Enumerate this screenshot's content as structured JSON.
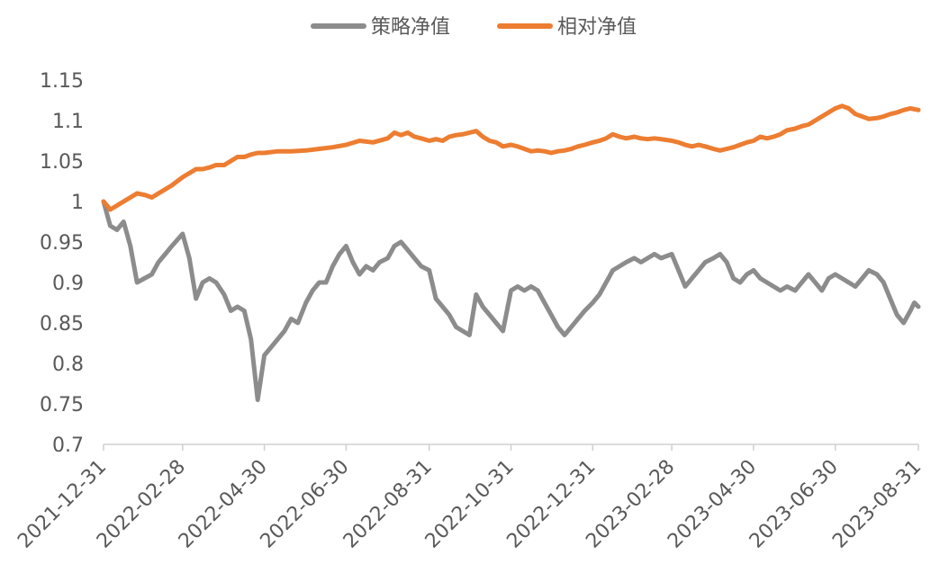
{
  "chart_data": {
    "type": "line",
    "title": "",
    "xlabel": "",
    "ylabel": "",
    "ylim": [
      0.7,
      1.15
    ],
    "y_ticks": [
      "1.15",
      "1.1",
      "1.05",
      "1",
      "0.95",
      "0.9",
      "0.85",
      "0.8",
      "0.75",
      "0.7"
    ],
    "x_ticks": [
      "2021-12-31",
      "2022-02-28",
      "2022-04-30",
      "2022-06-30",
      "2022-08-31",
      "2022-10-31",
      "2022-12-31",
      "2023-02-28",
      "2023-04-30",
      "2023-06-30",
      "2023-08-31"
    ],
    "grid": false,
    "legend_position": "top-center",
    "series": [
      {
        "name": "策略净值",
        "color": "#8c8c8c",
        "points": [
          [
            "2021-12-31",
            1.0
          ],
          [
            "2022-01-05",
            0.97
          ],
          [
            "2022-01-10",
            0.965
          ],
          [
            "2022-01-15",
            0.975
          ],
          [
            "2022-01-20",
            0.945
          ],
          [
            "2022-01-25",
            0.9
          ],
          [
            "2022-02-05",
            0.91
          ],
          [
            "2022-02-10",
            0.925
          ],
          [
            "2022-02-15",
            0.935
          ],
          [
            "2022-02-20",
            0.945
          ],
          [
            "2022-02-28",
            0.96
          ],
          [
            "2022-03-05",
            0.93
          ],
          [
            "2022-03-10",
            0.88
          ],
          [
            "2022-03-15",
            0.9
          ],
          [
            "2022-03-20",
            0.905
          ],
          [
            "2022-03-25",
            0.9
          ],
          [
            "2022-03-31",
            0.885
          ],
          [
            "2022-04-05",
            0.865
          ],
          [
            "2022-04-10",
            0.87
          ],
          [
            "2022-04-15",
            0.865
          ],
          [
            "2022-04-20",
            0.83
          ],
          [
            "2022-04-25",
            0.755
          ],
          [
            "2022-04-30",
            0.81
          ],
          [
            "2022-05-05",
            0.82
          ],
          [
            "2022-05-10",
            0.83
          ],
          [
            "2022-05-15",
            0.84
          ],
          [
            "2022-05-20",
            0.855
          ],
          [
            "2022-05-25",
            0.85
          ],
          [
            "2022-05-31",
            0.875
          ],
          [
            "2022-06-05",
            0.89
          ],
          [
            "2022-06-10",
            0.9
          ],
          [
            "2022-06-15",
            0.9
          ],
          [
            "2022-06-20",
            0.92
          ],
          [
            "2022-06-25",
            0.935
          ],
          [
            "2022-06-30",
            0.945
          ],
          [
            "2022-07-05",
            0.925
          ],
          [
            "2022-07-10",
            0.91
          ],
          [
            "2022-07-15",
            0.92
          ],
          [
            "2022-07-20",
            0.915
          ],
          [
            "2022-07-25",
            0.925
          ],
          [
            "2022-07-31",
            0.93
          ],
          [
            "2022-08-05",
            0.945
          ],
          [
            "2022-08-10",
            0.95
          ],
          [
            "2022-08-15",
            0.94
          ],
          [
            "2022-08-20",
            0.93
          ],
          [
            "2022-08-25",
            0.92
          ],
          [
            "2022-08-31",
            0.915
          ],
          [
            "2022-09-05",
            0.88
          ],
          [
            "2022-09-10",
            0.87
          ],
          [
            "2022-09-15",
            0.86
          ],
          [
            "2022-09-20",
            0.845
          ],
          [
            "2022-09-25",
            0.84
          ],
          [
            "2022-09-30",
            0.835
          ],
          [
            "2022-10-05",
            0.885
          ],
          [
            "2022-10-10",
            0.87
          ],
          [
            "2022-10-15",
            0.86
          ],
          [
            "2022-10-20",
            0.85
          ],
          [
            "2022-10-25",
            0.84
          ],
          [
            "2022-10-31",
            0.89
          ],
          [
            "2022-11-05",
            0.895
          ],
          [
            "2022-11-10",
            0.89
          ],
          [
            "2022-11-15",
            0.895
          ],
          [
            "2022-11-20",
            0.89
          ],
          [
            "2022-11-25",
            0.875
          ],
          [
            "2022-11-30",
            0.86
          ],
          [
            "2022-12-05",
            0.845
          ],
          [
            "2022-12-10",
            0.835
          ],
          [
            "2022-12-15",
            0.845
          ],
          [
            "2022-12-20",
            0.855
          ],
          [
            "2022-12-25",
            0.865
          ],
          [
            "2022-12-31",
            0.875
          ],
          [
            "2023-01-05",
            0.885
          ],
          [
            "2023-01-10",
            0.9
          ],
          [
            "2023-01-15",
            0.915
          ],
          [
            "2023-01-20",
            0.92
          ],
          [
            "2023-01-25",
            0.925
          ],
          [
            "2023-01-31",
            0.93
          ],
          [
            "2023-02-05",
            0.925
          ],
          [
            "2023-02-10",
            0.93
          ],
          [
            "2023-02-15",
            0.935
          ],
          [
            "2023-02-20",
            0.93
          ],
          [
            "2023-02-28",
            0.935
          ],
          [
            "2023-03-05",
            0.915
          ],
          [
            "2023-03-10",
            0.895
          ],
          [
            "2023-03-15",
            0.905
          ],
          [
            "2023-03-20",
            0.915
          ],
          [
            "2023-03-25",
            0.925
          ],
          [
            "2023-03-31",
            0.93
          ],
          [
            "2023-04-05",
            0.935
          ],
          [
            "2023-04-10",
            0.925
          ],
          [
            "2023-04-15",
            0.905
          ],
          [
            "2023-04-20",
            0.9
          ],
          [
            "2023-04-25",
            0.91
          ],
          [
            "2023-04-30",
            0.915
          ],
          [
            "2023-05-05",
            0.905
          ],
          [
            "2023-05-10",
            0.9
          ],
          [
            "2023-05-15",
            0.895
          ],
          [
            "2023-05-20",
            0.89
          ],
          [
            "2023-05-25",
            0.895
          ],
          [
            "2023-05-31",
            0.89
          ],
          [
            "2023-06-05",
            0.9
          ],
          [
            "2023-06-10",
            0.91
          ],
          [
            "2023-06-15",
            0.9
          ],
          [
            "2023-06-20",
            0.89
          ],
          [
            "2023-06-25",
            0.905
          ],
          [
            "2023-06-30",
            0.91
          ],
          [
            "2023-07-05",
            0.905
          ],
          [
            "2023-07-10",
            0.9
          ],
          [
            "2023-07-15",
            0.895
          ],
          [
            "2023-07-20",
            0.905
          ],
          [
            "2023-07-25",
            0.915
          ],
          [
            "2023-07-31",
            0.91
          ],
          [
            "2023-08-05",
            0.9
          ],
          [
            "2023-08-10",
            0.88
          ],
          [
            "2023-08-15",
            0.86
          ],
          [
            "2023-08-20",
            0.85
          ],
          [
            "2023-08-25",
            0.865
          ],
          [
            "2023-08-28",
            0.875
          ],
          [
            "2023-08-31",
            0.87
          ]
        ]
      },
      {
        "name": "相对净值",
        "color": "#ed7d31",
        "points": [
          [
            "2021-12-31",
            1.0
          ],
          [
            "2022-01-05",
            0.99
          ],
          [
            "2022-01-10",
            0.995
          ],
          [
            "2022-01-15",
            1.0
          ],
          [
            "2022-01-20",
            1.005
          ],
          [
            "2022-01-25",
            1.01
          ],
          [
            "2022-01-31",
            1.008
          ],
          [
            "2022-02-05",
            1.005
          ],
          [
            "2022-02-10",
            1.01
          ],
          [
            "2022-02-15",
            1.015
          ],
          [
            "2022-02-20",
            1.02
          ],
          [
            "2022-02-28",
            1.03
          ],
          [
            "2022-03-05",
            1.035
          ],
          [
            "2022-03-10",
            1.04
          ],
          [
            "2022-03-15",
            1.04
          ],
          [
            "2022-03-20",
            1.042
          ],
          [
            "2022-03-25",
            1.045
          ],
          [
            "2022-03-31",
            1.045
          ],
          [
            "2022-04-05",
            1.05
          ],
          [
            "2022-04-10",
            1.055
          ],
          [
            "2022-04-15",
            1.055
          ],
          [
            "2022-04-20",
            1.058
          ],
          [
            "2022-04-25",
            1.06
          ],
          [
            "2022-04-30",
            1.06
          ],
          [
            "2022-05-10",
            1.062
          ],
          [
            "2022-05-20",
            1.062
          ],
          [
            "2022-05-31",
            1.063
          ],
          [
            "2022-06-10",
            1.065
          ],
          [
            "2022-06-20",
            1.067
          ],
          [
            "2022-06-30",
            1.07
          ],
          [
            "2022-07-10",
            1.075
          ],
          [
            "2022-07-20",
            1.073
          ],
          [
            "2022-07-31",
            1.078
          ],
          [
            "2022-08-05",
            1.085
          ],
          [
            "2022-08-10",
            1.082
          ],
          [
            "2022-08-15",
            1.085
          ],
          [
            "2022-08-20",
            1.08
          ],
          [
            "2022-08-25",
            1.078
          ],
          [
            "2022-08-31",
            1.075
          ],
          [
            "2022-09-05",
            1.077
          ],
          [
            "2022-09-10",
            1.075
          ],
          [
            "2022-09-15",
            1.08
          ],
          [
            "2022-09-20",
            1.082
          ],
          [
            "2022-09-25",
            1.083
          ],
          [
            "2022-09-30",
            1.085
          ],
          [
            "2022-10-05",
            1.087
          ],
          [
            "2022-10-10",
            1.08
          ],
          [
            "2022-10-15",
            1.075
          ],
          [
            "2022-10-20",
            1.073
          ],
          [
            "2022-10-25",
            1.068
          ],
          [
            "2022-10-31",
            1.07
          ],
          [
            "2022-11-05",
            1.068
          ],
          [
            "2022-11-10",
            1.065
          ],
          [
            "2022-11-15",
            1.062
          ],
          [
            "2022-11-20",
            1.063
          ],
          [
            "2022-11-25",
            1.062
          ],
          [
            "2022-11-30",
            1.06
          ],
          [
            "2022-12-05",
            1.062
          ],
          [
            "2022-12-10",
            1.063
          ],
          [
            "2022-12-15",
            1.065
          ],
          [
            "2022-12-20",
            1.068
          ],
          [
            "2022-12-25",
            1.07
          ],
          [
            "2022-12-31",
            1.073
          ],
          [
            "2023-01-05",
            1.075
          ],
          [
            "2023-01-10",
            1.078
          ],
          [
            "2023-01-15",
            1.083
          ],
          [
            "2023-01-20",
            1.08
          ],
          [
            "2023-01-25",
            1.078
          ],
          [
            "2023-01-31",
            1.08
          ],
          [
            "2023-02-05",
            1.078
          ],
          [
            "2023-02-10",
            1.077
          ],
          [
            "2023-02-15",
            1.078
          ],
          [
            "2023-02-20",
            1.077
          ],
          [
            "2023-02-28",
            1.075
          ],
          [
            "2023-03-05",
            1.073
          ],
          [
            "2023-03-10",
            1.07
          ],
          [
            "2023-03-15",
            1.068
          ],
          [
            "2023-03-20",
            1.07
          ],
          [
            "2023-03-25",
            1.068
          ],
          [
            "2023-03-31",
            1.065
          ],
          [
            "2023-04-05",
            1.063
          ],
          [
            "2023-04-10",
            1.065
          ],
          [
            "2023-04-15",
            1.067
          ],
          [
            "2023-04-20",
            1.07
          ],
          [
            "2023-04-25",
            1.073
          ],
          [
            "2023-04-30",
            1.075
          ],
          [
            "2023-05-05",
            1.08
          ],
          [
            "2023-05-10",
            1.078
          ],
          [
            "2023-05-15",
            1.08
          ],
          [
            "2023-05-20",
            1.083
          ],
          [
            "2023-05-25",
            1.088
          ],
          [
            "2023-05-31",
            1.09
          ],
          [
            "2023-06-05",
            1.093
          ],
          [
            "2023-06-10",
            1.095
          ],
          [
            "2023-06-15",
            1.1
          ],
          [
            "2023-06-20",
            1.105
          ],
          [
            "2023-06-25",
            1.11
          ],
          [
            "2023-06-30",
            1.115
          ],
          [
            "2023-07-05",
            1.118
          ],
          [
            "2023-07-10",
            1.115
          ],
          [
            "2023-07-15",
            1.108
          ],
          [
            "2023-07-20",
            1.105
          ],
          [
            "2023-07-25",
            1.102
          ],
          [
            "2023-07-31",
            1.103
          ],
          [
            "2023-08-05",
            1.105
          ],
          [
            "2023-08-10",
            1.108
          ],
          [
            "2023-08-15",
            1.11
          ],
          [
            "2023-08-20",
            1.113
          ],
          [
            "2023-08-25",
            1.115
          ],
          [
            "2023-08-31",
            1.113
          ]
        ]
      }
    ]
  }
}
